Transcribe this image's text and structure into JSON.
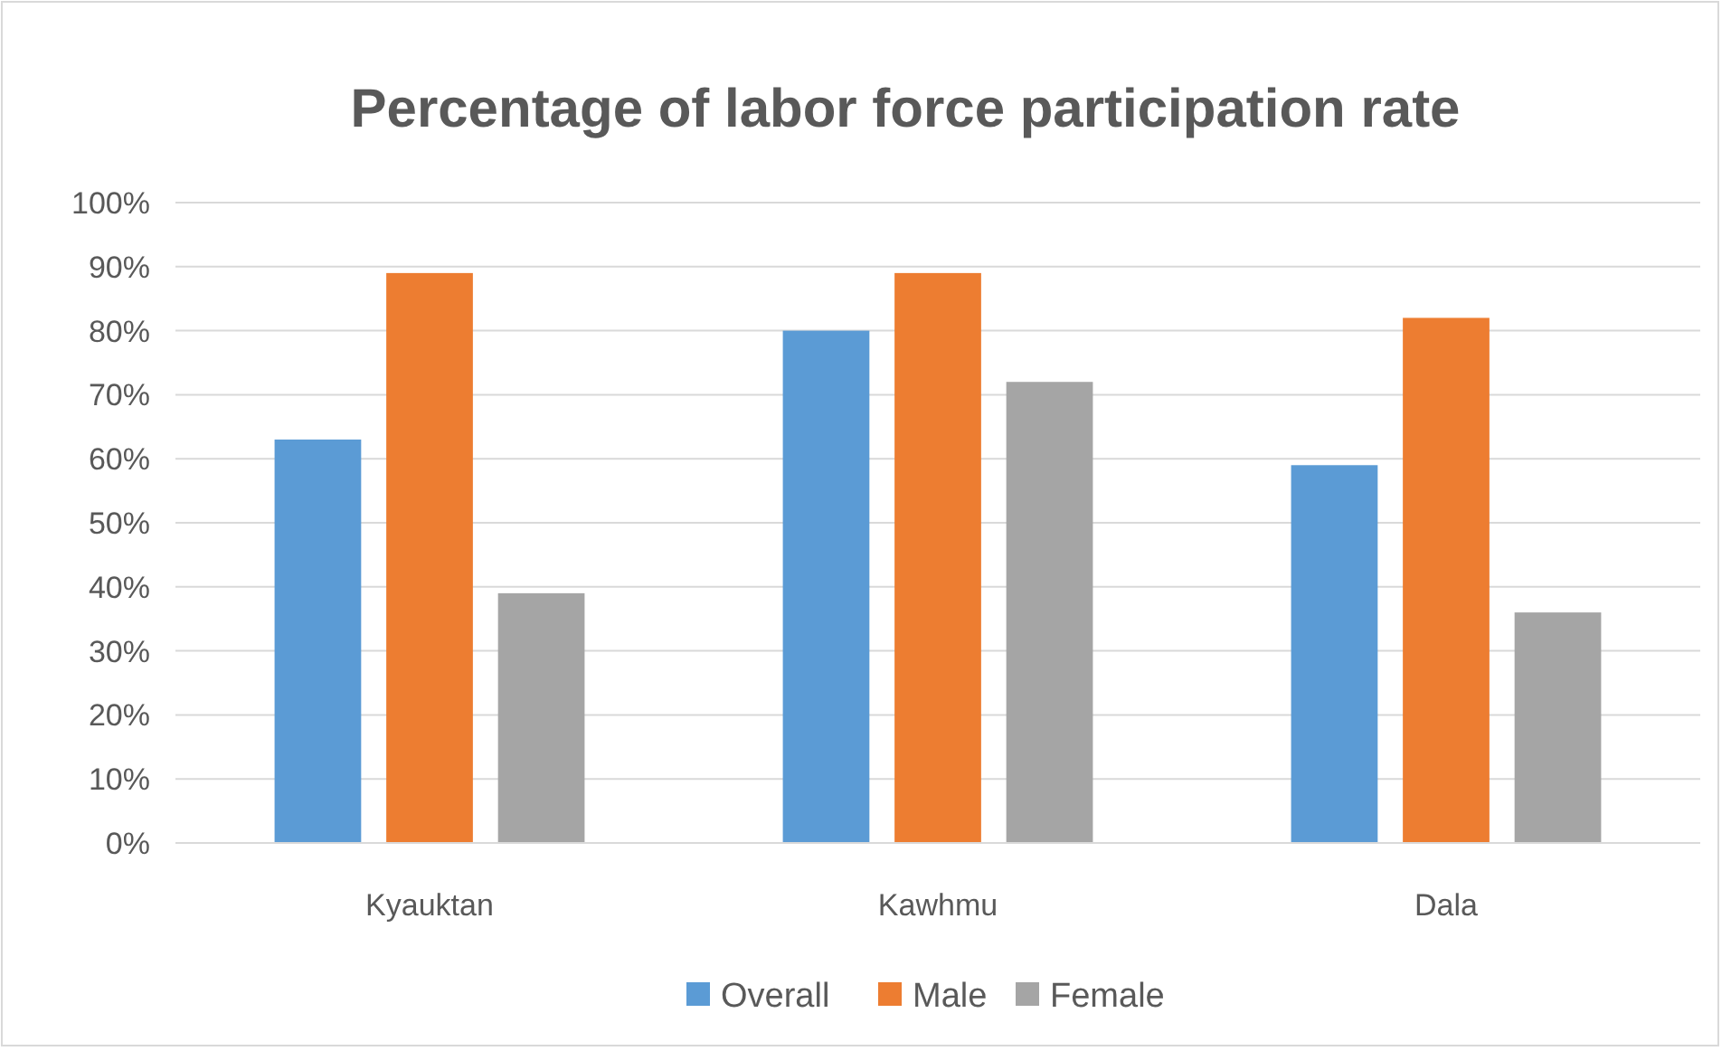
{
  "chart_data": {
    "type": "bar",
    "title": "Percentage of labor force participation rate",
    "categories": [
      "Kyauktan",
      "Kawhmu",
      "Dala"
    ],
    "series": [
      {
        "name": "Overall",
        "color": "#5b9bd5",
        "values": [
          63,
          80,
          59
        ]
      },
      {
        "name": "Male",
        "color": "#ed7d31",
        "values": [
          89,
          89,
          82
        ]
      },
      {
        "name": "Female",
        "color": "#a5a5a5",
        "values": [
          39,
          72,
          36
        ]
      }
    ],
    "ylim": [
      0,
      100
    ],
    "yticks": [
      {
        "value": 0,
        "label": "0%"
      },
      {
        "value": 10,
        "label": "10%"
      },
      {
        "value": 20,
        "label": "20%"
      },
      {
        "value": 30,
        "label": "30%"
      },
      {
        "value": 40,
        "label": "40%"
      },
      {
        "value": 50,
        "label": "50%"
      },
      {
        "value": 60,
        "label": "60%"
      },
      {
        "value": 70,
        "label": "70%"
      },
      {
        "value": 80,
        "label": "80%"
      },
      {
        "value": 90,
        "label": "90%"
      },
      {
        "value": 100,
        "label": "100%"
      }
    ],
    "grid": "y",
    "legend": "bottom"
  }
}
